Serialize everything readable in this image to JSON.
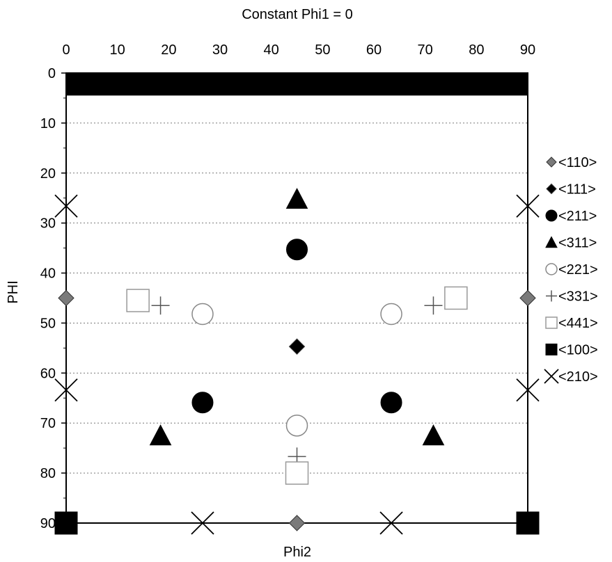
{
  "chart_data": {
    "type": "scatter",
    "title": "Constant Phi1 = 0",
    "xlabel": "Phi2",
    "ylabel": "PHI",
    "xlim": [
      0,
      90
    ],
    "ylim": [
      0,
      90
    ],
    "y_inverted": true,
    "x_ticks": [
      "0",
      "10",
      "20",
      "30",
      "40",
      "50",
      "60",
      "70",
      "80",
      "90"
    ],
    "y_ticks": [
      "0",
      "10",
      "20",
      "30",
      "40",
      "50",
      "60",
      "70",
      "80",
      "90"
    ],
    "grid": "dotted horizontal",
    "legend_position": "right",
    "series": [
      {
        "name": "<110>",
        "marker": "diamond",
        "filled": true,
        "color": "#7a7a7a",
        "points": [
          [
            0,
            45
          ],
          [
            90,
            45
          ],
          [
            45,
            90
          ]
        ]
      },
      {
        "name": "<111>",
        "marker": "diamond",
        "filled": true,
        "color": "#000000",
        "points": [
          [
            45,
            54.7
          ]
        ]
      },
      {
        "name": "<211>",
        "marker": "circle",
        "filled": true,
        "color": "#000000",
        "points": [
          [
            45,
            35.3
          ],
          [
            26.6,
            65.9
          ],
          [
            63.4,
            65.9
          ]
        ]
      },
      {
        "name": "<311>",
        "marker": "triangle",
        "filled": true,
        "color": "#000000",
        "points": [
          [
            45,
            25.2
          ],
          [
            18.4,
            72.5
          ],
          [
            71.6,
            72.5
          ]
        ]
      },
      {
        "name": "<221>",
        "marker": "circle",
        "filled": false,
        "color": "#888888",
        "points": [
          [
            26.6,
            48.2
          ],
          [
            63.4,
            48.2
          ],
          [
            45,
            70.5
          ]
        ]
      },
      {
        "name": "<331>",
        "marker": "plus",
        "filled": false,
        "color": "#555555",
        "points": [
          [
            18.4,
            46.5
          ],
          [
            71.6,
            46.5
          ],
          [
            45,
            76.7
          ]
        ]
      },
      {
        "name": "<441>",
        "marker": "square",
        "filled": false,
        "color": "#999999",
        "points": [
          [
            14,
            45.5
          ],
          [
            76,
            45
          ],
          [
            45,
            80
          ]
        ]
      },
      {
        "name": "<100>",
        "marker": "square",
        "filled": true,
        "color": "#000000",
        "points": [
          [
            0,
            90
          ],
          [
            90,
            90
          ]
        ]
      },
      {
        "name": "<210>",
        "marker": "x",
        "filled": false,
        "color": "#000000",
        "points": [
          [
            0,
            26.6
          ],
          [
            90,
            26.6
          ],
          [
            0,
            63.4
          ],
          [
            90,
            63.4
          ],
          [
            26.6,
            90
          ],
          [
            63.4,
            90
          ]
        ]
      }
    ],
    "top_band": {
      "y_from": 0,
      "y_to": 4.5,
      "color": "#000000"
    }
  }
}
